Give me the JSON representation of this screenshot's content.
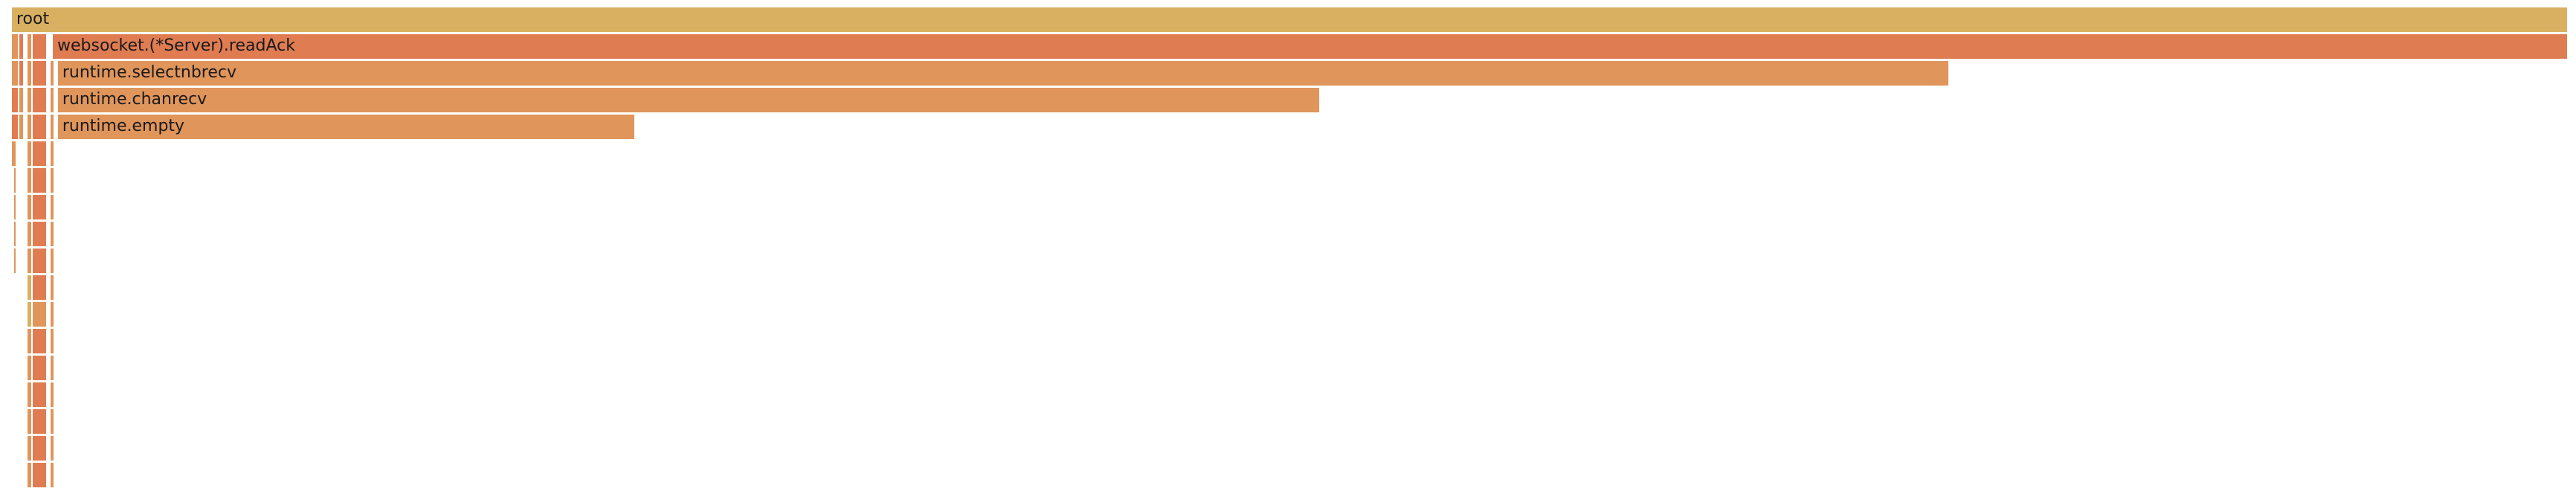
{
  "chart_data": {
    "type": "flamegraph",
    "title": "",
    "total": 1000,
    "frames": [
      {
        "name": "root",
        "depth": 0,
        "start": 0,
        "value": 1000,
        "color": "#d9b062"
      },
      {
        "name": "websocket.(*Server).readAck",
        "depth": 1,
        "start": 16,
        "value": 984,
        "color": "#e07c52"
      },
      {
        "name": "runtime.selectnbrecv",
        "depth": 2,
        "start": 18,
        "value": 740,
        "color": "#e0955b"
      },
      {
        "name": "runtime.chanrecv",
        "depth": 3,
        "start": 18,
        "value": 494,
        "color": "#e0955b"
      },
      {
        "name": "runtime.empty",
        "depth": 4,
        "start": 18,
        "value": 226,
        "color": "#e0955b"
      },
      {
        "name": "",
        "depth": 1,
        "start": 0,
        "value": 3,
        "color": "#e0955b"
      },
      {
        "name": "",
        "depth": 1,
        "start": 3,
        "value": 2,
        "color": "#e07c52"
      },
      {
        "name": "",
        "depth": 1,
        "start": 6,
        "value": 2,
        "color": "#e0955b"
      },
      {
        "name": "",
        "depth": 1,
        "start": 8,
        "value": 6,
        "color": "#e07c52"
      },
      {
        "name": "",
        "depth": 2,
        "start": 0,
        "value": 3,
        "color": "#e0955b"
      },
      {
        "name": "",
        "depth": 2,
        "start": 3,
        "value": 2,
        "color": "#e07c52"
      },
      {
        "name": "",
        "depth": 2,
        "start": 6,
        "value": 2,
        "color": "#e0955b"
      },
      {
        "name": "",
        "depth": 2,
        "start": 8,
        "value": 6,
        "color": "#e07c52"
      },
      {
        "name": "",
        "depth": 2,
        "start": 15,
        "value": 2,
        "color": "#e0955b"
      },
      {
        "name": "",
        "depth": 3,
        "start": 0,
        "value": 3,
        "color": "#e07c52"
      },
      {
        "name": "",
        "depth": 3,
        "start": 3,
        "value": 2,
        "color": "#e0955b"
      },
      {
        "name": "",
        "depth": 3,
        "start": 6,
        "value": 2,
        "color": "#e0955b"
      },
      {
        "name": "",
        "depth": 3,
        "start": 8,
        "value": 6,
        "color": "#e07c52"
      },
      {
        "name": "",
        "depth": 3,
        "start": 15,
        "value": 2,
        "color": "#e0955b"
      },
      {
        "name": "",
        "depth": 4,
        "start": 0,
        "value": 3,
        "color": "#e07c52"
      },
      {
        "name": "",
        "depth": 4,
        "start": 3,
        "value": 2,
        "color": "#e0955b"
      },
      {
        "name": "",
        "depth": 4,
        "start": 6,
        "value": 2,
        "color": "#e0955b"
      },
      {
        "name": "",
        "depth": 4,
        "start": 8,
        "value": 6,
        "color": "#e07c52"
      },
      {
        "name": "",
        "depth": 4,
        "start": 15,
        "value": 2,
        "color": "#e0955b"
      },
      {
        "name": "",
        "depth": 5,
        "start": 0,
        "value": 2,
        "color": "#e0955b"
      },
      {
        "name": "",
        "depth": 5,
        "start": 6,
        "value": 2,
        "color": "#e0955b"
      },
      {
        "name": "",
        "depth": 5,
        "start": 8,
        "value": 6,
        "color": "#e07c52"
      },
      {
        "name": "",
        "depth": 5,
        "start": 15,
        "value": 2,
        "color": "#e0955b"
      },
      {
        "name": "",
        "depth": 6,
        "start": 1,
        "value": 1,
        "color": "#e0955b"
      },
      {
        "name": "",
        "depth": 6,
        "start": 6,
        "value": 2,
        "color": "#e0955b"
      },
      {
        "name": "",
        "depth": 6,
        "start": 8,
        "value": 6,
        "color": "#e07c52"
      },
      {
        "name": "",
        "depth": 6,
        "start": 15,
        "value": 2,
        "color": "#e0955b"
      },
      {
        "name": "",
        "depth": 7,
        "start": 1,
        "value": 1,
        "color": "#e0955b"
      },
      {
        "name": "",
        "depth": 7,
        "start": 6,
        "value": 2,
        "color": "#e0955b"
      },
      {
        "name": "",
        "depth": 7,
        "start": 8,
        "value": 6,
        "color": "#e07c52"
      },
      {
        "name": "",
        "depth": 7,
        "start": 15,
        "value": 2,
        "color": "#e0955b"
      },
      {
        "name": "",
        "depth": 8,
        "start": 1,
        "value": 1,
        "color": "#e0955b"
      },
      {
        "name": "",
        "depth": 8,
        "start": 6,
        "value": 2,
        "color": "#e0955b"
      },
      {
        "name": "",
        "depth": 8,
        "start": 8,
        "value": 6,
        "color": "#e07c52"
      },
      {
        "name": "",
        "depth": 8,
        "start": 15,
        "value": 2,
        "color": "#e0955b"
      },
      {
        "name": "",
        "depth": 9,
        "start": 1,
        "value": 1,
        "color": "#e0955b"
      },
      {
        "name": "",
        "depth": 9,
        "start": 6,
        "value": 2,
        "color": "#e0955b"
      },
      {
        "name": "",
        "depth": 9,
        "start": 8,
        "value": 6,
        "color": "#e07c52"
      },
      {
        "name": "",
        "depth": 9,
        "start": 15,
        "value": 2,
        "color": "#e0955b"
      },
      {
        "name": "",
        "depth": 10,
        "start": 6,
        "value": 2,
        "color": "#d9b062"
      },
      {
        "name": "",
        "depth": 10,
        "start": 8,
        "value": 6,
        "color": "#e07c52"
      },
      {
        "name": "",
        "depth": 10,
        "start": 15,
        "value": 2,
        "color": "#e0955b"
      },
      {
        "name": "",
        "depth": 11,
        "start": 6,
        "value": 2,
        "color": "#d9b062"
      },
      {
        "name": "",
        "depth": 11,
        "start": 8,
        "value": 6,
        "color": "#e0955b"
      },
      {
        "name": "",
        "depth": 11,
        "start": 15,
        "value": 2,
        "color": "#e0955b"
      },
      {
        "name": "",
        "depth": 12,
        "start": 6,
        "value": 2,
        "color": "#e0955b"
      },
      {
        "name": "",
        "depth": 12,
        "start": 8,
        "value": 6,
        "color": "#e07c52"
      },
      {
        "name": "",
        "depth": 12,
        "start": 15,
        "value": 2,
        "color": "#e0955b"
      },
      {
        "name": "",
        "depth": 13,
        "start": 6,
        "value": 2,
        "color": "#e0955b"
      },
      {
        "name": "",
        "depth": 13,
        "start": 8,
        "value": 6,
        "color": "#e07c52"
      },
      {
        "name": "",
        "depth": 13,
        "start": 15,
        "value": 2,
        "color": "#e0955b"
      },
      {
        "name": "",
        "depth": 14,
        "start": 6,
        "value": 2,
        "color": "#e0955b"
      },
      {
        "name": "",
        "depth": 14,
        "start": 8,
        "value": 6,
        "color": "#e07c52"
      },
      {
        "name": "",
        "depth": 14,
        "start": 15,
        "value": 2,
        "color": "#e0955b"
      },
      {
        "name": "",
        "depth": 15,
        "start": 6,
        "value": 2,
        "color": "#e0955b"
      },
      {
        "name": "",
        "depth": 15,
        "start": 8,
        "value": 6,
        "color": "#e07c52"
      },
      {
        "name": "",
        "depth": 15,
        "start": 15,
        "value": 2,
        "color": "#e0955b"
      },
      {
        "name": "",
        "depth": 16,
        "start": 6,
        "value": 2,
        "color": "#e0955b"
      },
      {
        "name": "",
        "depth": 16,
        "start": 8,
        "value": 6,
        "color": "#e07c52"
      },
      {
        "name": "",
        "depth": 16,
        "start": 15,
        "value": 2,
        "color": "#e0955b"
      },
      {
        "name": "",
        "depth": 17,
        "start": 6,
        "value": 2,
        "color": "#e0955b"
      },
      {
        "name": "",
        "depth": 17,
        "start": 8,
        "value": 6,
        "color": "#e07c52"
      },
      {
        "name": "",
        "depth": 17,
        "start": 15,
        "value": 2,
        "color": "#e0955b"
      }
    ]
  }
}
